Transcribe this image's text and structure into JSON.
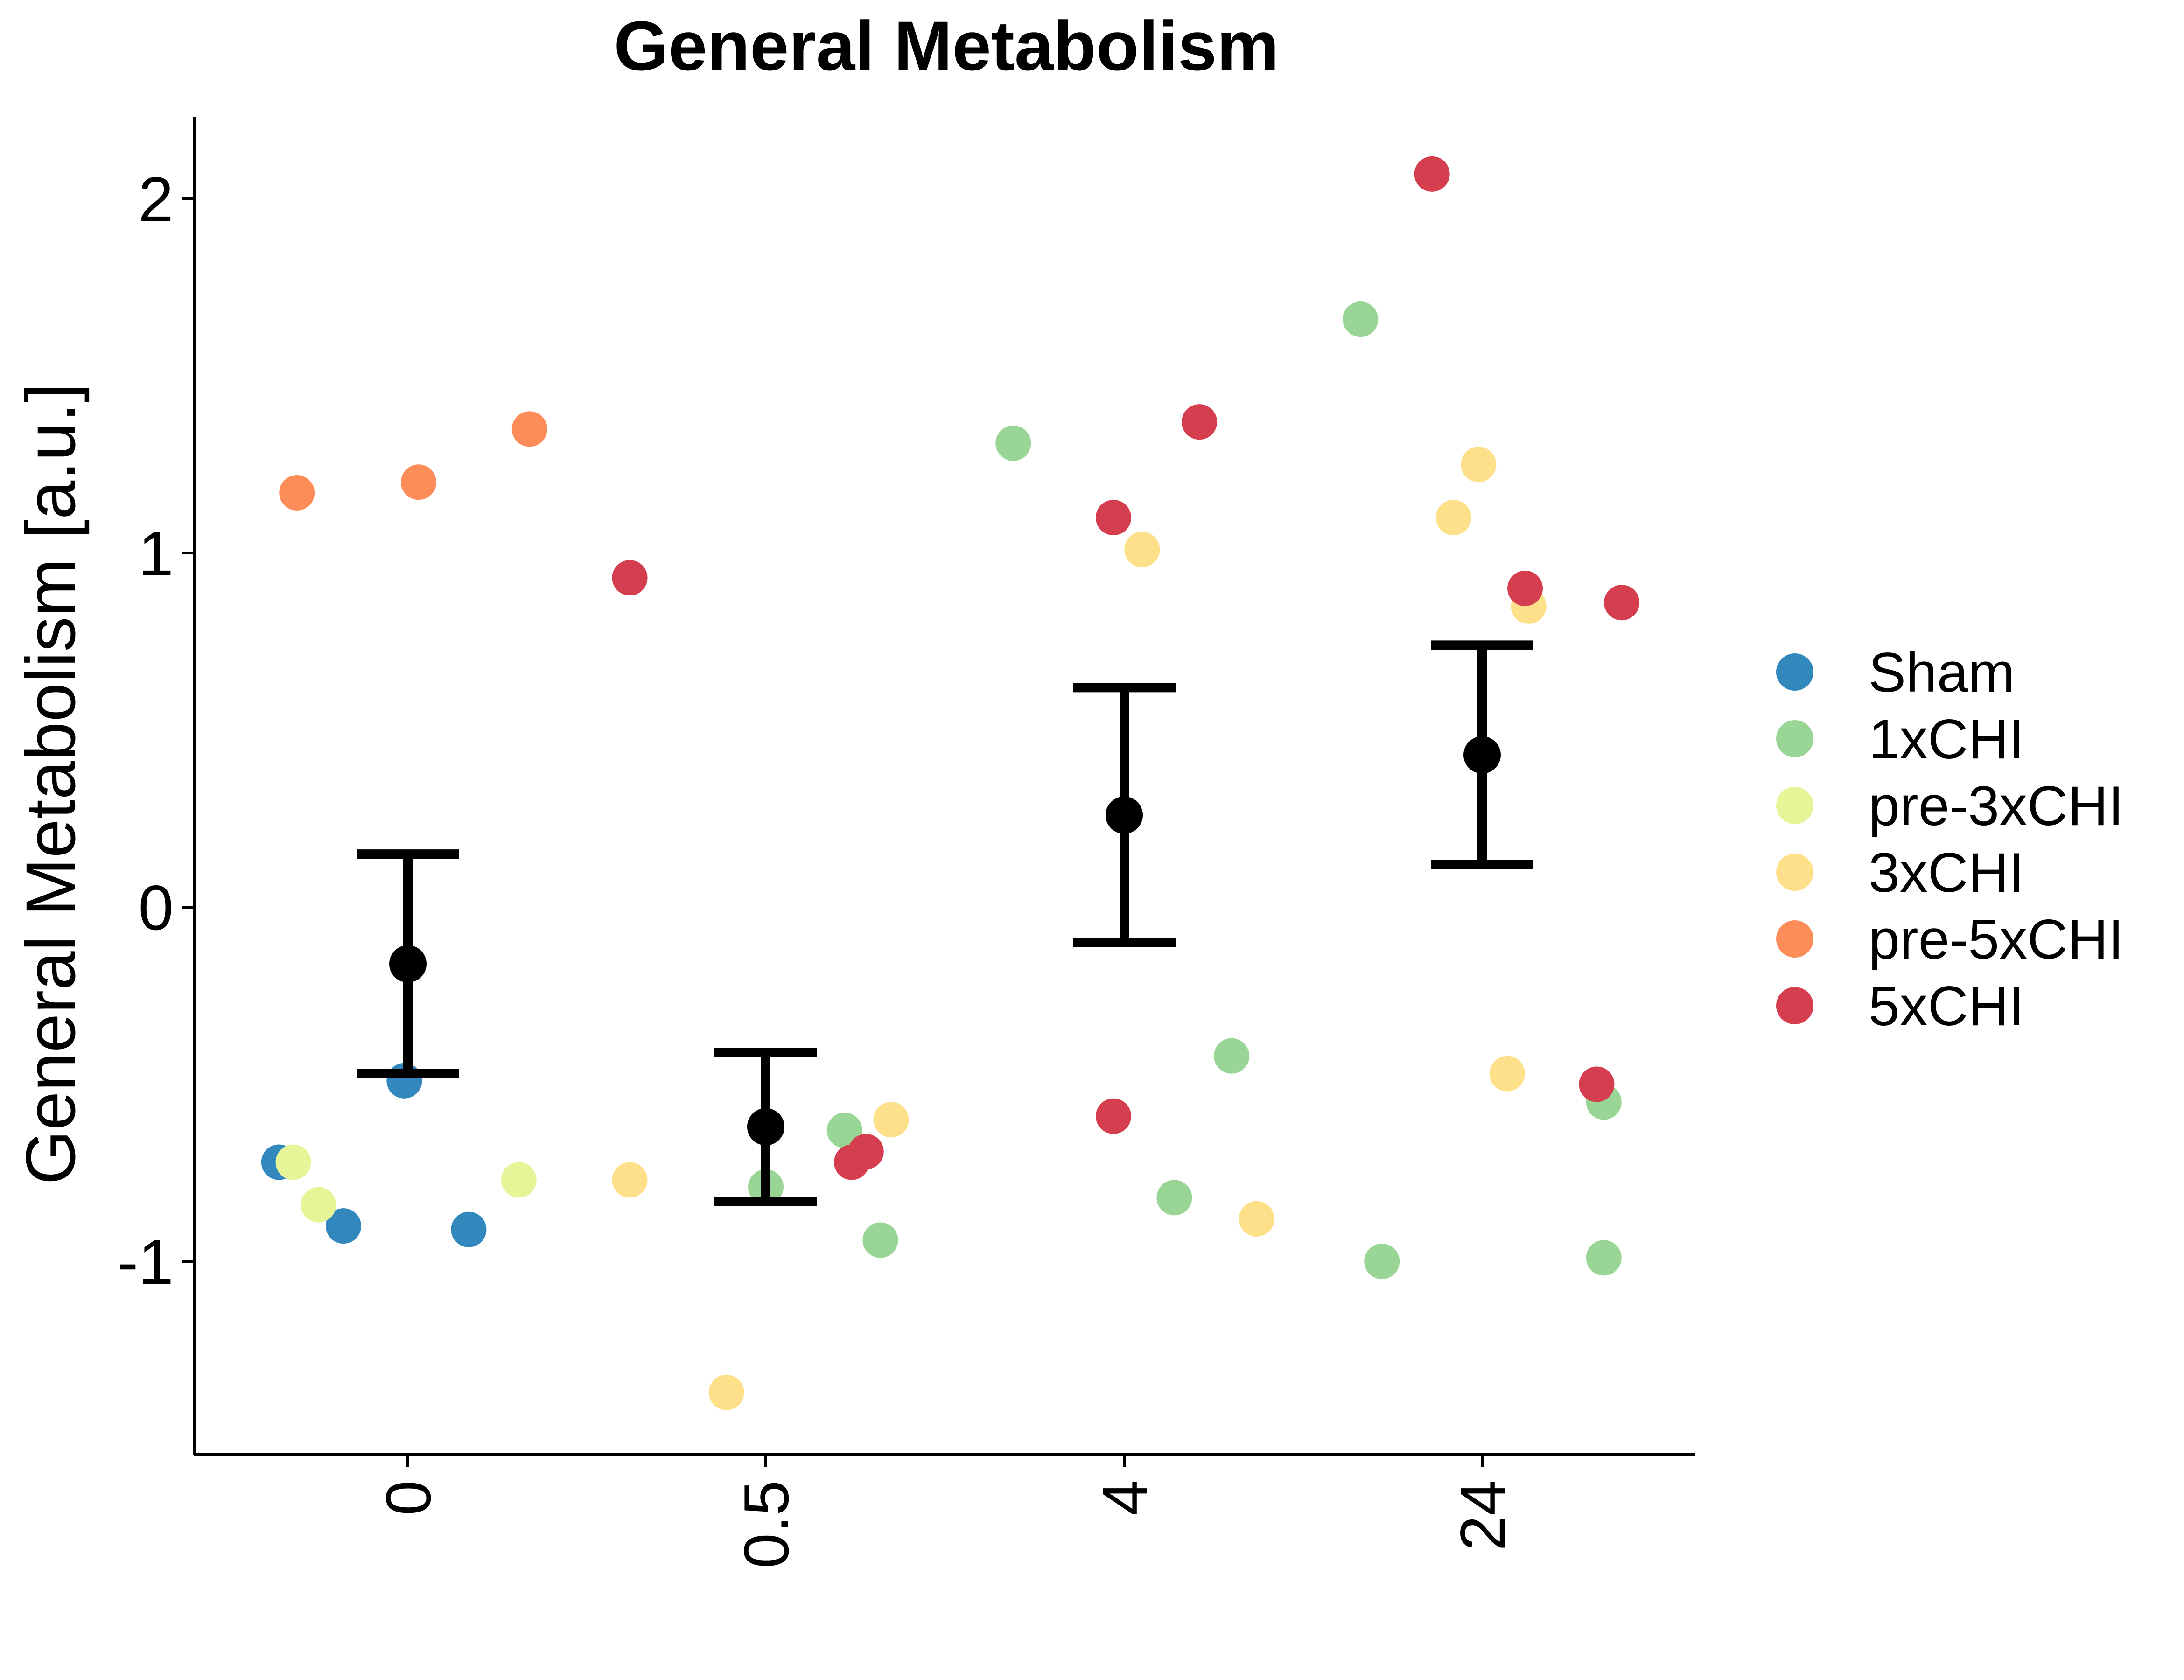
{
  "chart_data": {
    "type": "scatter",
    "title": "General Metabolism",
    "xlabel": "",
    "ylabel": "General Metabolism [a.u.]",
    "categories": [
      "0",
      "0.5",
      "4",
      "24"
    ],
    "ylim": [
      -1.55,
      2.25
    ],
    "yticks": [
      -1,
      0,
      1,
      2
    ],
    "yticklabels": [
      "-1",
      "0",
      "1",
      "2"
    ],
    "grid": false,
    "legend_position": "right",
    "colors": {
      "Sham": "#3288bd",
      "1xCHI": "#99d594",
      "pre-3xCHI": "#e6f598",
      "3xCHI": "#fee08b",
      "pre-5xCHI": "#fc8d59",
      "5xCHI": "#d53e4f"
    },
    "series": [
      {
        "name": "Sham",
        "points": [
          {
            "x": "0",
            "jitter": -0.36,
            "y": -0.72
          },
          {
            "x": "0",
            "jitter": -0.18,
            "y": -0.9
          },
          {
            "x": "0",
            "jitter": -0.01,
            "y": -0.49
          },
          {
            "x": "0",
            "jitter": 0.17,
            "y": -0.91
          }
        ]
      },
      {
        "name": "1xCHI",
        "points": [
          {
            "x": "0.5",
            "jitter": 0.0,
            "y": -0.79
          },
          {
            "x": "0.5",
            "jitter": 0.22,
            "y": -0.63
          },
          {
            "x": "0.5",
            "jitter": 0.32,
            "y": -0.94
          },
          {
            "x": "4",
            "jitter": -0.31,
            "y": 1.31
          },
          {
            "x": "4",
            "jitter": 0.14,
            "y": -0.82
          },
          {
            "x": "4",
            "jitter": 0.3,
            "y": -0.42
          },
          {
            "x": "24",
            "jitter": -0.34,
            "y": 1.66
          },
          {
            "x": "24",
            "jitter": -0.28,
            "y": -1.0
          },
          {
            "x": "24",
            "jitter": 0.34,
            "y": -0.55
          },
          {
            "x": "24",
            "jitter": 0.34,
            "y": -0.99
          }
        ]
      },
      {
        "name": "pre-3xCHI",
        "points": [
          {
            "x": "0",
            "jitter": -0.32,
            "y": -0.72
          },
          {
            "x": "0",
            "jitter": -0.25,
            "y": -0.84
          },
          {
            "x": "0",
            "jitter": 0.31,
            "y": -0.77
          }
        ]
      },
      {
        "name": "3xCHI",
        "points": [
          {
            "x": "0",
            "jitter": 0.62,
            "y": -0.77
          },
          {
            "x": "0.5",
            "jitter": -0.11,
            "y": -1.37
          },
          {
            "x": "0.5",
            "jitter": 0.35,
            "y": -0.6
          },
          {
            "x": "4",
            "jitter": 0.05,
            "y": 1.01
          },
          {
            "x": "4",
            "jitter": 0.37,
            "y": -0.88
          },
          {
            "x": "24",
            "jitter": -0.08,
            "y": 1.1
          },
          {
            "x": "24",
            "jitter": -0.01,
            "y": 1.25
          },
          {
            "x": "24",
            "jitter": 0.07,
            "y": -0.47
          },
          {
            "x": "24",
            "jitter": 0.13,
            "y": 0.85
          }
        ]
      },
      {
        "name": "pre-5xCHI",
        "points": [
          {
            "x": "0",
            "jitter": -0.31,
            "y": 1.17
          },
          {
            "x": "0",
            "jitter": 0.03,
            "y": 1.2
          },
          {
            "x": "0",
            "jitter": 0.34,
            "y": 1.35
          }
        ]
      },
      {
        "name": "5xCHI",
        "points": [
          {
            "x": "0",
            "jitter": 0.62,
            "y": 0.93
          },
          {
            "x": "0.5",
            "jitter": 0.24,
            "y": -0.72
          },
          {
            "x": "0.5",
            "jitter": 0.28,
            "y": -0.69
          },
          {
            "x": "4",
            "jitter": -0.03,
            "y": 1.1
          },
          {
            "x": "4",
            "jitter": -0.03,
            "y": -0.59
          },
          {
            "x": "4",
            "jitter": 0.21,
            "y": 1.37
          },
          {
            "x": "24",
            "jitter": -0.14,
            "y": 2.07
          },
          {
            "x": "24",
            "jitter": 0.12,
            "y": 0.9
          },
          {
            "x": "24",
            "jitter": 0.32,
            "y": -0.5
          },
          {
            "x": "24",
            "jitter": 0.39,
            "y": 0.86
          }
        ]
      }
    ],
    "summary": [
      {
        "x": "0",
        "mean": -0.16,
        "lower": -0.47,
        "upper": 0.15
      },
      {
        "x": "0.5",
        "mean": -0.62,
        "lower": -0.83,
        "upper": -0.41
      },
      {
        "x": "4",
        "mean": 0.26,
        "lower": -0.1,
        "upper": 0.62
      },
      {
        "x": "24",
        "mean": 0.43,
        "lower": 0.12,
        "upper": 0.74
      }
    ]
  }
}
